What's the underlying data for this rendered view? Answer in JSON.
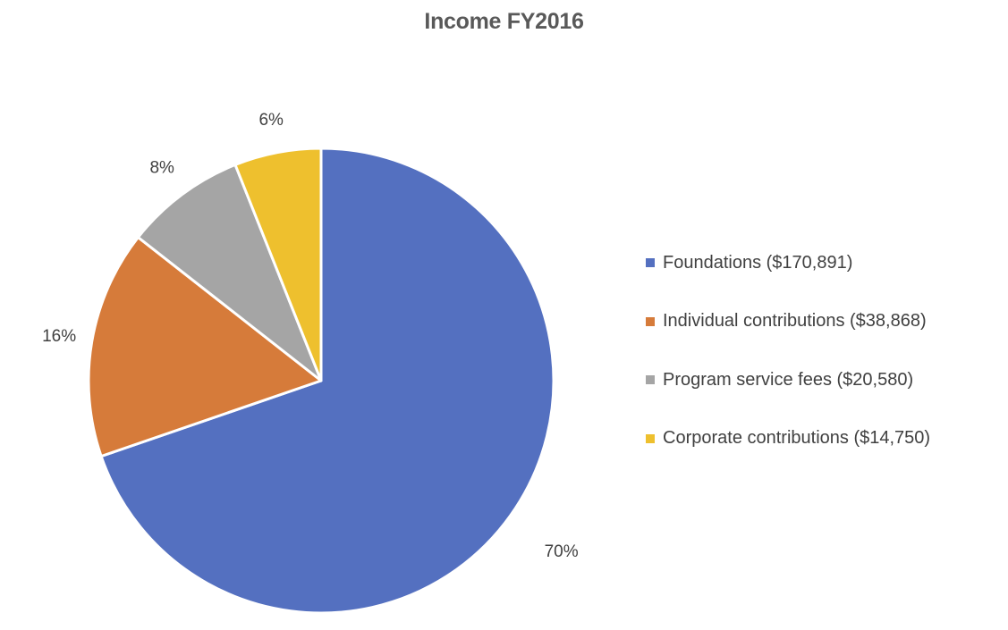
{
  "chart_data": {
    "type": "pie",
    "title": "Income FY2016",
    "categories": [
      "Foundations ($170,891)",
      "Individual contributions ($38,868)",
      "Program service fees ($20,580)",
      "Corporate contributions ($14,750)"
    ],
    "values": [
      170891,
      38868,
      20580,
      14750
    ],
    "percent_labels": [
      "70%",
      "16%",
      "8%",
      "6%"
    ],
    "colors": [
      "#5470C0",
      "#D67B3A",
      "#A5A5A5",
      "#EEC02E"
    ],
    "start_angle": "12 o'clock",
    "direction": "clockwise",
    "legend_position": "right"
  }
}
